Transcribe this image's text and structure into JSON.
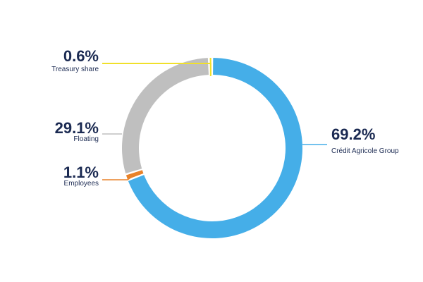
{
  "chart_data": {
    "type": "pie",
    "variant": "donut",
    "title": "",
    "categories": [
      "Crédit Agricole Group",
      "Employees",
      "Floating",
      "Treasury share"
    ],
    "values": [
      69.2,
      1.1,
      29.1,
      0.6
    ],
    "unit": "%",
    "value_labels": [
      "69.2%",
      "1.1%",
      "29.1%",
      "0.6%"
    ],
    "colors": [
      "#45aee8",
      "#e8822a",
      "#bfbfbf",
      "#f0e02a"
    ],
    "legend": "none"
  }
}
